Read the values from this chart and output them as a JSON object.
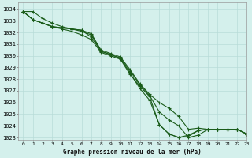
{
  "title": "Graphe pression niveau de la mer (hPa)",
  "bg_color": "#d4f0ec",
  "grid_color": "#b8dcd8",
  "line_color": "#1a5c1a",
  "xlim": [
    -0.5,
    23
  ],
  "ylim": [
    1022.8,
    1034.6
  ],
  "ytick_values": [
    1023,
    1024,
    1025,
    1026,
    1027,
    1028,
    1029,
    1030,
    1031,
    1032,
    1033,
    1034
  ],
  "series": [
    [
      1033.8,
      1033.8,
      1033.2,
      1032.8,
      1032.5,
      1032.3,
      1032.1,
      1031.8,
      1030.4,
      1030.1,
      1029.8,
      1028.5,
      1027.2,
      1026.2,
      1024.1,
      1023.3,
      1023.0,
      1023.2,
      1023.6,
      1023.7,
      1023.7,
      1023.7,
      1023.7,
      1023.3
    ],
    [
      1033.8,
      1033.1,
      1032.8,
      1032.5,
      1032.3,
      1032.1,
      1031.8,
      1031.4,
      1030.3,
      1030.0,
      1029.7,
      1028.4,
      1027.4,
      1026.5,
      1024.1,
      1023.3,
      1023.0,
      1023.1,
      1023.6,
      1023.7,
      1023.7,
      1023.7,
      1023.7,
      1023.3
    ],
    [
      1033.8,
      1033.1,
      1032.8,
      1032.5,
      1032.4,
      1032.3,
      1032.2,
      1031.9,
      1030.5,
      1030.2,
      1029.9,
      1028.8,
      1027.6,
      1026.7,
      1026.0,
      1025.5,
      1024.8,
      1023.7,
      1023.8,
      1023.7,
      1023.7,
      1023.7,
      1023.7,
      1023.3
    ],
    [
      1033.8,
      1033.1,
      1032.8,
      1032.5,
      1032.4,
      1032.3,
      1032.2,
      1031.6,
      1030.4,
      1030.1,
      1029.8,
      1028.7,
      1027.5,
      1026.6,
      1025.2,
      1024.5,
      1024.0,
      1023.0,
      1023.2,
      1023.7,
      1023.7,
      1023.7,
      1023.7,
      1023.3
    ]
  ]
}
